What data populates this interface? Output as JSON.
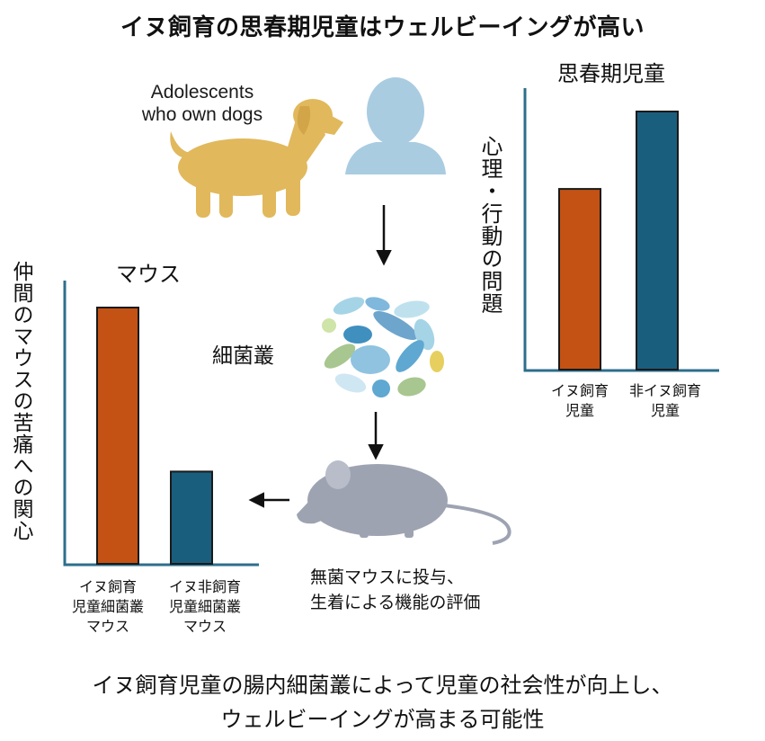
{
  "title": "イヌ飼育の思春期児童はウェルビーイングが高い",
  "dog_caption": "Adolescents\nwho own dogs",
  "microbiota_label": "細菌叢",
  "transplant_note": [
    "無菌マウスに投与、",
    "生着による機能の評価"
  ],
  "conclusion": [
    "イヌ飼育児童の腸内細菌叢によって児童の社会性が向上し、",
    "ウェルビーイングが高まる可能性"
  ],
  "icons": {
    "dog": "dog-icon",
    "person": "person-icon",
    "bacteria": "bacteria-cluster-icon",
    "mouse": "mouse-icon"
  },
  "colors": {
    "dog_group": "#c35214",
    "non_dog_group": "#1a5e7e",
    "axis": "#2e6e8c"
  },
  "chart_data": [
    {
      "type": "bar",
      "title": "思春期児童",
      "ylabel": "心理・行動の問題",
      "categories": [
        "イヌ飼育\n児童",
        "非イヌ飼育\n児童"
      ],
      "values": [
        70,
        100
      ],
      "ylim": [
        0,
        100
      ]
    },
    {
      "type": "bar",
      "title": "マウス",
      "ylabel": "仲間のマウスの苦痛への関心",
      "categories": [
        "イヌ飼育\n児童細菌叢\nマウス",
        "イヌ非飼育\n児童細菌叢\nマウス"
      ],
      "values": [
        100,
        36
      ],
      "ylim": [
        0,
        100
      ]
    }
  ]
}
